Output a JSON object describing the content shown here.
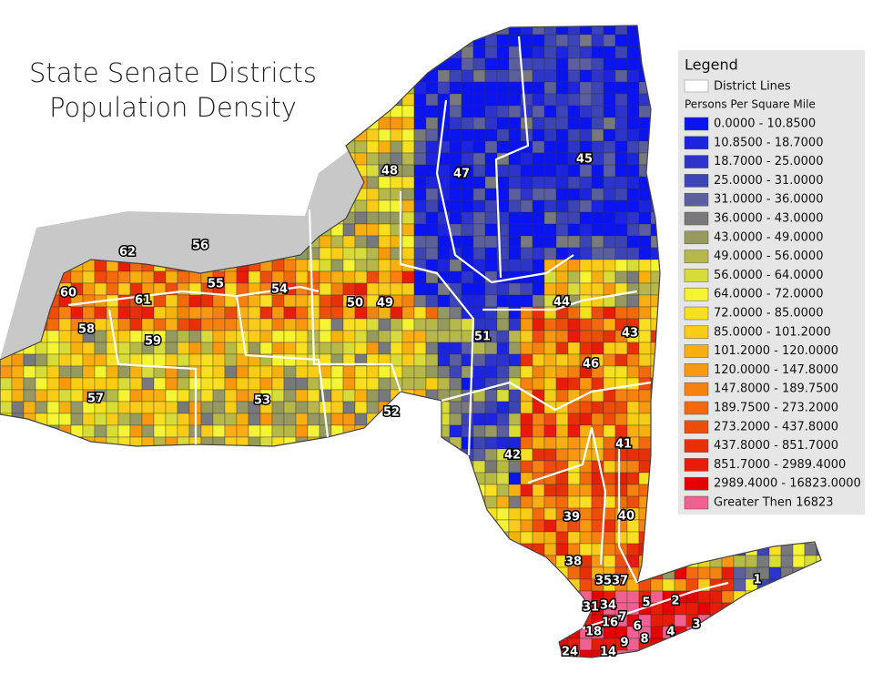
{
  "title": {
    "line1": "State Senate Districts",
    "line2": "Population Density"
  },
  "legend": {
    "title": "Legend",
    "district_lines": "District Lines",
    "subtitle": "Persons Per Square Mile",
    "classes": [
      {
        "label": "0.0000 - 10.8500",
        "color": "#0a14f0"
      },
      {
        "label": "10.8500 - 18.7000",
        "color": "#1c24e0"
      },
      {
        "label": "18.7000 - 25.0000",
        "color": "#2c34cc"
      },
      {
        "label": "25.0000 - 31.0000",
        "color": "#3d44b6"
      },
      {
        "label": "31.0000 - 36.0000",
        "color": "#5b5f9e"
      },
      {
        "label": "36.0000 - 43.0000",
        "color": "#77797c"
      },
      {
        "label": "43.0000 - 49.0000",
        "color": "#979a5e"
      },
      {
        "label": "49.0000 - 56.0000",
        "color": "#b6b94a"
      },
      {
        "label": "56.0000 - 64.0000",
        "color": "#d8dc3a"
      },
      {
        "label": "64.0000 - 72.0000",
        "color": "#f4f432"
      },
      {
        "label": "72.0000 - 85.0000",
        "color": "#f8e020"
      },
      {
        "label": "85.0000 - 101.2000",
        "color": "#f9cc18"
      },
      {
        "label": "101.2000 - 120.0000",
        "color": "#f8b010"
      },
      {
        "label": "120.0000 - 147.8000",
        "color": "#f7980e"
      },
      {
        "label": "147.8000 - 189.7500",
        "color": "#f5820e"
      },
      {
        "label": "189.7500 - 273.2000",
        "color": "#f26a0c"
      },
      {
        "label": "273.2000 - 437.8000",
        "color": "#ee4c0a"
      },
      {
        "label": "437.8000 - 851.7000",
        "color": "#e83008"
      },
      {
        "label": "851.7000 - 2989.4000",
        "color": "#e81c06"
      },
      {
        "label": "2989.4000 - 16823.0000",
        "color": "#e60005"
      },
      {
        "label": "Greater Then 16823",
        "color": "#f06090"
      }
    ]
  },
  "districts": [
    "62",
    "56",
    "55",
    "54",
    "60",
    "61",
    "58",
    "59",
    "57",
    "53",
    "52",
    "50",
    "49",
    "48",
    "47",
    "45",
    "44",
    "43",
    "46",
    "51",
    "42",
    "41",
    "40",
    "39",
    "38",
    "35",
    "37",
    "1",
    "2",
    "3",
    "4",
    "5",
    "6",
    "7",
    "8",
    "9",
    "14",
    "16",
    "18",
    "24",
    "31",
    "34"
  ]
}
